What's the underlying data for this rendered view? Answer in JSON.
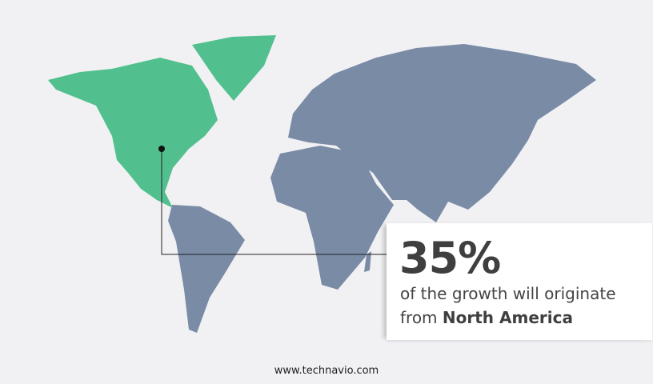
{
  "colors": {
    "highlight_region": "#52c08e",
    "other_regions": "#7a8ba6",
    "background": "#f1f1f4"
  },
  "highlighted_region": "North America",
  "callout": {
    "percent": "35%",
    "text_line1": "of the growth will originate",
    "text_prefix": "from",
    "region": "North America"
  },
  "footer": {
    "website": "www.technavio.com"
  }
}
